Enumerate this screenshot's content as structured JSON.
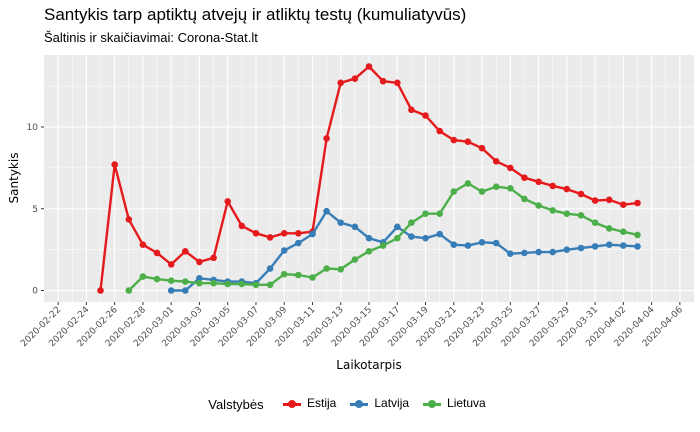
{
  "header": {
    "title": "Santykis tarp aptiktų atvejų ir atliktų testų (kumuliatyvūs)",
    "subtitle": "Šaltinis ir skaičiavimai: Corona-Stat.lt"
  },
  "chart_data": {
    "type": "line",
    "title": "Santykis tarp aptiktų atvejų ir atliktų testų (kumuliatyvūs)",
    "subtitle": "Šaltinis ir skaičiavimai: Corona-Stat.lt",
    "xlabel": "Laikotarpis",
    "ylabel": "Santykis",
    "x_tick_labels": [
      "2020-02-22",
      "2020-02-24",
      "2020-02-26",
      "2020-02-28",
      "2020-03-01",
      "2020-03-03",
      "2020-03-05",
      "2020-03-07",
      "2020-03-09",
      "2020-03-11",
      "2020-03-13",
      "2020-03-15",
      "2020-03-17",
      "2020-03-19",
      "2020-03-21",
      "2020-03-23",
      "2020-03-25",
      "2020-03-27",
      "2020-03-29",
      "2020-03-31",
      "2020-04-02",
      "2020-04-04",
      "2020-04-06"
    ],
    "y_ticks": [
      0,
      5,
      10
    ],
    "xlim": [
      "2020-02-21",
      "2020-04-07"
    ],
    "ylim": [
      -0.7,
      14.4
    ],
    "grid": true,
    "legend_title": "Valstybės",
    "legend_position": "bottom",
    "series": [
      {
        "name": "Estija",
        "color": "#e41a1c",
        "start": "2020-02-25",
        "values": [
          0.0,
          7.7,
          4.35,
          2.8,
          2.3,
          1.6,
          2.4,
          1.75,
          2.0,
          5.45,
          3.95,
          3.5,
          3.25,
          3.5,
          3.5,
          3.6,
          9.3,
          12.7,
          12.95,
          13.7,
          12.8,
          12.7,
          11.05,
          10.7,
          9.75,
          9.2,
          9.1,
          8.7,
          7.9,
          7.5,
          6.9,
          6.65,
          6.4,
          6.2,
          5.9,
          5.5,
          5.55,
          5.25,
          5.35
        ]
      },
      {
        "name": "Latvija",
        "color": "#377eb8",
        "start": "2020-03-01",
        "values": [
          0.0,
          0.0,
          0.75,
          0.65,
          0.55,
          0.55,
          0.45,
          1.35,
          2.45,
          2.9,
          3.45,
          4.85,
          4.15,
          3.9,
          3.2,
          2.95,
          3.9,
          3.3,
          3.2,
          3.45,
          2.8,
          2.75,
          2.95,
          2.9,
          2.25,
          2.3,
          2.35,
          2.35,
          2.5,
          2.6,
          2.7,
          2.8,
          2.75,
          2.7
        ]
      },
      {
        "name": "Lietuva",
        "color": "#4daf4a",
        "start": "2020-02-27",
        "values": [
          0.0,
          0.85,
          0.7,
          0.6,
          0.55,
          0.45,
          0.45,
          0.4,
          0.4,
          0.35,
          0.35,
          1.0,
          0.95,
          0.8,
          1.35,
          1.3,
          1.9,
          2.4,
          2.75,
          3.2,
          4.15,
          4.7,
          4.7,
          6.05,
          6.55,
          6.05,
          6.35,
          6.25,
          5.6,
          5.2,
          4.9,
          4.7,
          4.6,
          4.15,
          3.8,
          3.6,
          3.4
        ]
      }
    ]
  }
}
